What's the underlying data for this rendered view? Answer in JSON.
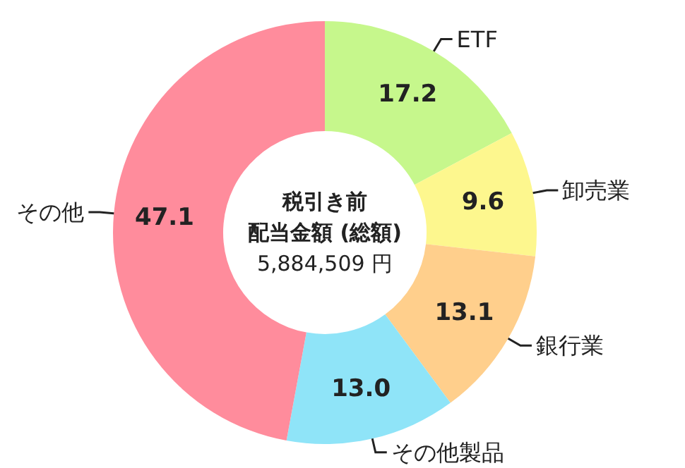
{
  "chart_data": {
    "type": "donut",
    "annotations": [
      "税引き前",
      "配当金額 (総額)",
      "5,884,509 円"
    ],
    "categories": [
      "ETF",
      "卸売業",
      "銀行業",
      "その他製品",
      "その他"
    ],
    "values": [
      17.2,
      9.6,
      13.1,
      13.0,
      47.1
    ],
    "value_labels": [
      "17.2",
      "9.6",
      "13.1",
      "13.0",
      "47.1"
    ],
    "colors": [
      "#c6f78c",
      "#fdf78e",
      "#ffcf8c",
      "#8fe4f8",
      "#ff8c9c"
    ],
    "legend": false
  }
}
